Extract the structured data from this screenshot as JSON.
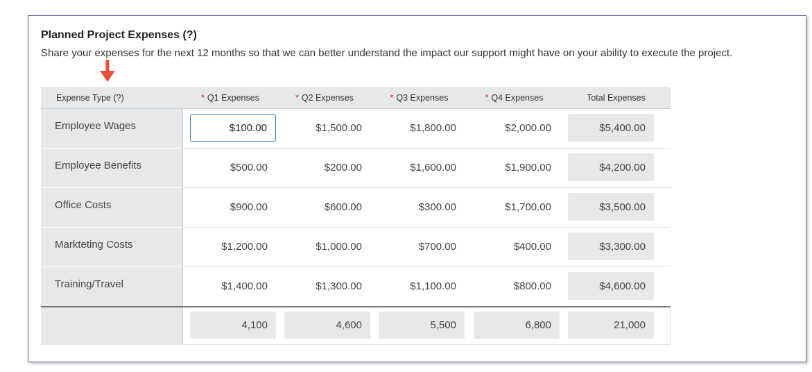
{
  "header": {
    "title": "Planned Project Expenses (?)",
    "description": "Share your expenses for the next 12 months so that we can better understand the impact our support might have on your ability to execute the project."
  },
  "table": {
    "columns": [
      {
        "label": "Expense Type (?)"
      },
      {
        "required": "*",
        "label": "Q1 Expenses"
      },
      {
        "required": "*",
        "label": "Q2 Expenses"
      },
      {
        "required": "*",
        "label": "Q3 Expenses"
      },
      {
        "required": "*",
        "label": "Q4 Expenses"
      },
      {
        "label": "Total Expenses"
      }
    ],
    "rows": [
      [
        "Employee Wages",
        "$100.00",
        "$1,500.00",
        "$1,800.00",
        "$2,000.00",
        "$5,400.00"
      ],
      [
        "Employee Benefits",
        "$500.00",
        "$200.00",
        "$1,600.00",
        "$1,900.00",
        "$4,200.00"
      ],
      [
        "Office Costs",
        "$900.00",
        "$600.00",
        "$300.00",
        "$1,700.00",
        "$3,500.00"
      ],
      [
        "Markteting Costs",
        "$1,200.00",
        "$1,000.00",
        "$700.00",
        "$400.00",
        "$3,300.00"
      ],
      [
        "Training/Travel",
        "$1,400.00",
        "$1,300.00",
        "$1,100.00",
        "$800.00",
        "$4,600.00"
      ]
    ],
    "totals": [
      "4,100",
      "4,600",
      "5,500",
      "6,800",
      "21,000"
    ]
  }
}
